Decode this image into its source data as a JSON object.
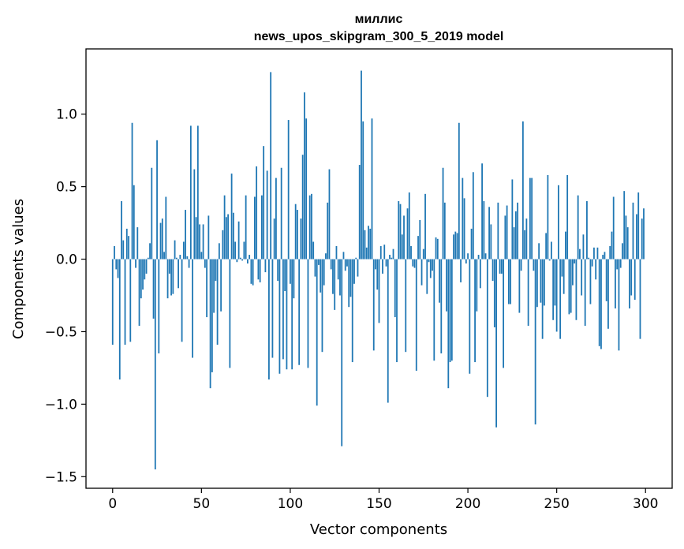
{
  "chart_data": {
    "type": "bar",
    "title": "миллис",
    "subtitle": "news_upos_skipgram_300_5_2019 model",
    "xlabel": "Vector components",
    "ylabel": "Components values",
    "xlim": [
      -15,
      315
    ],
    "ylim": [
      -1.58,
      1.45
    ],
    "xticks": [
      0,
      50,
      100,
      150,
      200,
      250,
      300
    ],
    "xtick_labels": [
      "0",
      "50",
      "100",
      "150",
      "200",
      "250",
      "300"
    ],
    "yticks": [
      -1.5,
      -1.0,
      -0.5,
      0.0,
      0.5,
      1.0
    ],
    "ytick_labels": [
      "−1.5",
      "−1.0",
      "−0.5",
      "0.0",
      "0.5",
      "1.0"
    ],
    "bar_color": "#1f77b4",
    "grid": false,
    "values": [
      -0.59,
      0.09,
      -0.07,
      -0.13,
      -0.83,
      0.4,
      0.13,
      -0.59,
      0.21,
      0.16,
      -0.57,
      0.94,
      0.51,
      -0.06,
      0.22,
      -0.46,
      -0.27,
      -0.21,
      -0.14,
      -0.1,
      0.01,
      0.11,
      0.63,
      -0.41,
      -1.45,
      0.82,
      -0.65,
      0.25,
      0.28,
      0.05,
      0.43,
      -0.27,
      -0.1,
      -0.25,
      -0.24,
      0.13,
      0.01,
      -0.2,
      0.03,
      -0.57,
      0.12,
      0.34,
      0.02,
      -0.06,
      0.92,
      -0.68,
      0.62,
      0.29,
      0.92,
      0.24,
      0.05,
      0.24,
      -0.06,
      -0.4,
      0.3,
      -0.89,
      -0.78,
      -0.37,
      -0.15,
      -0.59,
      0.11,
      -0.36,
      0.2,
      0.44,
      0.29,
      0.31,
      -0.75,
      0.59,
      0.32,
      0.12,
      -0.02,
      0.26,
      0.01,
      -0.01,
      0.12,
      0.44,
      -0.03,
      0.03,
      -0.17,
      -0.18,
      0.43,
      0.64,
      -0.14,
      -0.16,
      0.44,
      0.78,
      -0.09,
      0.61,
      -0.83,
      1.29,
      -0.68,
      0.28,
      0.56,
      -0.15,
      -0.79,
      0.63,
      -0.69,
      -0.22,
      -0.76,
      0.96,
      -0.17,
      -0.76,
      -0.27,
      0.38,
      0.34,
      -0.73,
      0.28,
      0.72,
      1.15,
      0.97,
      -0.75,
      0.44,
      0.45,
      0.12,
      -0.12,
      -1.01,
      -0.04,
      -0.23,
      -0.64,
      -0.18,
      0.04,
      0.39,
      0.62,
      -0.07,
      -0.24,
      -0.35,
      0.09,
      -0.14,
      -0.25,
      -1.29,
      0.05,
      -0.08,
      -0.05,
      -0.33,
      -0.26,
      -0.71,
      -0.17,
      0.01,
      -0.12,
      0.65,
      1.3,
      0.95,
      0.2,
      0.08,
      0.23,
      0.21,
      0.97,
      -0.63,
      -0.07,
      -0.21,
      -0.44,
      0.09,
      -0.1,
      0.1,
      -0.05,
      -0.99,
      0.03,
      0.01,
      0.07,
      -0.4,
      -0.71,
      0.4,
      0.38,
      0.17,
      0.3,
      -0.64,
      0.35,
      0.46,
      0.09,
      -0.05,
      -0.06,
      -0.77,
      0.16,
      0.27,
      -0.18,
      0.07,
      0.45,
      -0.24,
      -0.02,
      -0.13,
      -0.08,
      -0.7,
      0.15,
      0.14,
      -0.3,
      -0.65,
      0.63,
      0.39,
      -0.36,
      -0.89,
      -0.71,
      -0.7,
      0.17,
      0.19,
      0.18,
      0.94,
      -0.16,
      0.56,
      0.42,
      -0.03,
      0.04,
      -0.79,
      0.21,
      0.6,
      -0.71,
      -0.36,
      0.03,
      -0.2,
      0.66,
      0.4,
      0.04,
      -0.95,
      0.36,
      0.24,
      -0.15,
      -0.47,
      -1.16,
      0.39,
      -0.1,
      -0.1,
      -0.75,
      0.3,
      0.37,
      -0.31,
      -0.31,
      0.55,
      0.22,
      0.33,
      0.39,
      -0.37,
      -0.08,
      0.95,
      0.2,
      0.28,
      -0.46,
      0.56,
      0.56,
      -0.08,
      -1.14,
      -0.33,
      0.11,
      -0.3,
      -0.55,
      -0.32,
      0.18,
      0.58,
      -0.01,
      0.12,
      -0.42,
      -0.32,
      -0.5,
      0.51,
      -0.55,
      -0.12,
      -0.24,
      0.19,
      0.58,
      -0.38,
      -0.37,
      -0.18,
      -0.03,
      -0.42,
      0.44,
      0.07,
      -0.25,
      0.17,
      -0.46,
      0.4,
      0.01,
      -0.31,
      -0.05,
      0.08,
      -0.14,
      0.08,
      -0.6,
      -0.62,
      0.03,
      0.05,
      -0.29,
      -0.48,
      0.09,
      0.19,
      0.43,
      -0.34,
      -0.07,
      -0.63,
      -0.06,
      0.11,
      0.47,
      0.3,
      0.22,
      -0.34,
      -0.25,
      0.39,
      -0.28,
      0.31,
      0.46,
      -0.55,
      0.28,
      0.35
    ]
  }
}
